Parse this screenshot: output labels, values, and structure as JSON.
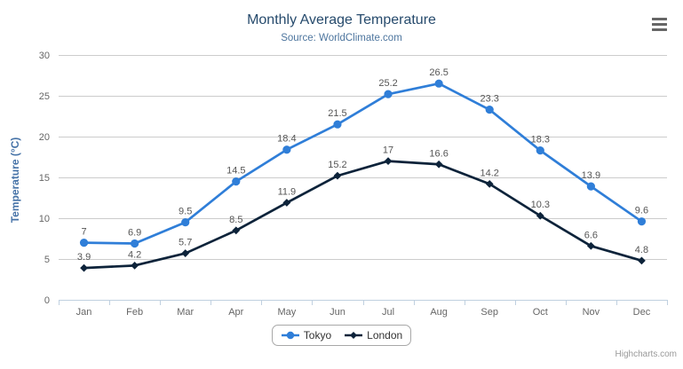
{
  "chart_data": {
    "type": "line",
    "title": "Monthly Average Temperature",
    "subtitle": "Source: WorldClimate.com",
    "xlabel": "",
    "ylabel": "Temperature (°C)",
    "categories": [
      "Jan",
      "Feb",
      "Mar",
      "Apr",
      "May",
      "Jun",
      "Jul",
      "Aug",
      "Sep",
      "Oct",
      "Nov",
      "Dec"
    ],
    "series": [
      {
        "name": "Tokyo",
        "color": "#2f7ed8",
        "marker": "circle",
        "values": [
          7,
          6.9,
          9.5,
          14.5,
          18.4,
          21.5,
          25.2,
          26.5,
          23.3,
          18.3,
          13.9,
          9.6
        ]
      },
      {
        "name": "London",
        "color": "#0d233a",
        "marker": "diamond",
        "values": [
          3.9,
          4.2,
          5.7,
          8.5,
          11.9,
          15.2,
          17,
          16.6,
          14.2,
          10.3,
          6.6,
          4.8
        ]
      }
    ],
    "ylim": [
      0,
      30
    ],
    "yticks": [
      0,
      5,
      10,
      15,
      20,
      25,
      30
    ],
    "grid": true,
    "legend_position": "bottom",
    "data_labels": true
  },
  "theme": {
    "background": "#ffffff",
    "title_color": "#274b6d",
    "subtitle_color": "#4d759e",
    "axis_title_color": "#4572a7",
    "tick_label_color": "#666666",
    "data_label_color": "#555555",
    "grid_color": "#cccccc",
    "axis_line_color": "#c0d0e0",
    "legend_text_color": "#333333",
    "legend_border_color": "#a8a8a8",
    "credits_color": "#999999",
    "menu_icon_color": "#666666"
  },
  "export_menu": {
    "icon": "hamburger-menu"
  },
  "credits": {
    "label": "Highcharts.com"
  }
}
